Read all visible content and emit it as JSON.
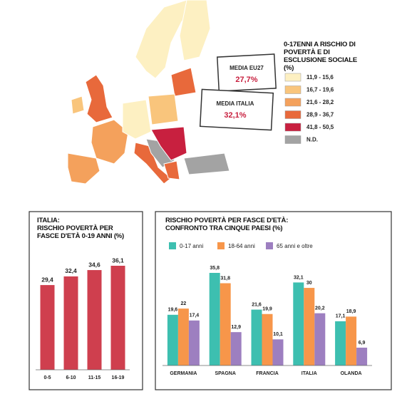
{
  "map": {
    "legend_title": "0-17ENNI A RISCHIO DI POVERTÀ E DI ESCLUSIONE SOCIALE (%)",
    "legend": [
      {
        "label": "11,9 - 15,6",
        "color": "#fdf0c2"
      },
      {
        "label": "16,7 - 19,6",
        "color": "#f9c57c"
      },
      {
        "label": "21,6 - 28,2",
        "color": "#f4a15c"
      },
      {
        "label": "28,9 - 36,7",
        "color": "#e8693b"
      },
      {
        "label": "41,8 - 50,5",
        "color": "#c8203f"
      },
      {
        "label": "N.D.",
        "color": "#a3a3a3"
      }
    ],
    "averages": [
      {
        "label": "MEDIA EU27",
        "value": "27,7%"
      },
      {
        "label": "MEDIA ITALIA",
        "value": "32,1%"
      }
    ]
  },
  "chart_data": [
    {
      "type": "bar",
      "title": "ITALIA:",
      "subtitle": "RISCHIO POVERTÀ PER FASCE D'ETÀ 0-19 ANNI (%)",
      "categories": [
        "0-5",
        "6-10",
        "11-15",
        "16-19"
      ],
      "values": [
        29.4,
        32.4,
        34.6,
        36.1
      ],
      "value_labels": [
        "29,4",
        "32,4",
        "34,6",
        "36,1"
      ],
      "color": "#cf3f4e"
    },
    {
      "type": "bar",
      "title": "RISCHIO POVERTÀ PER FASCE D'ETÀ:",
      "subtitle": "CONFRONTO TRA CINQUE PAESI (%)",
      "categories": [
        "GERMANIA",
        "SPAGNA",
        "FRANCIA",
        "ITALIA",
        "OLANDA"
      ],
      "series": [
        {
          "name": "0-17 anni",
          "color": "#3dbfb0",
          "values": [
            19.6,
            35.8,
            21.6,
            32.1,
            17.1
          ],
          "value_labels": [
            "19,6",
            "35,8",
            "21,6",
            "32,1",
            "17,1"
          ]
        },
        {
          "name": "18-64 anni",
          "color": "#f7964a",
          "values": [
            22,
            31.8,
            19.9,
            30,
            18.9
          ],
          "value_labels": [
            "22",
            "31,8",
            "19,9",
            "30",
            "18,9"
          ]
        },
        {
          "name": "65 anni e oltre",
          "color": "#9d7fc0",
          "values": [
            17.4,
            12.9,
            10.1,
            20.2,
            6.9
          ],
          "value_labels": [
            "17,4",
            "12,9",
            "10,1",
            "20,2",
            "6,9"
          ]
        }
      ]
    }
  ]
}
